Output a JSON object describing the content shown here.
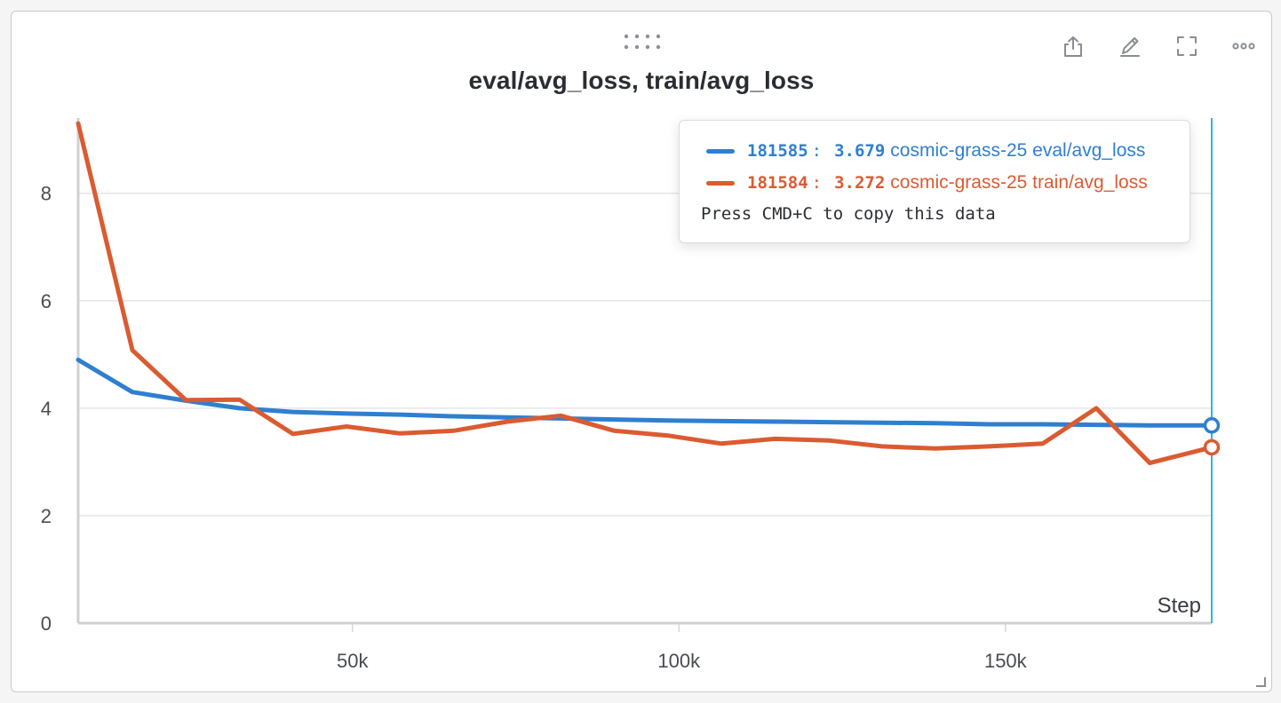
{
  "panel": {
    "title": "eval/avg_loss, train/avg_loss",
    "icons": [
      "drag-handle-icon",
      "share-icon",
      "edit-icon",
      "fullscreen-icon",
      "more-icon",
      "resize-icon"
    ]
  },
  "tooltip": {
    "rows": [
      {
        "step": "181585",
        "value": "3.679",
        "name": "cosmic-grass-25 eval/avg_loss",
        "color": "#2f7fd0"
      },
      {
        "step": "181584",
        "value": "3.272",
        "name": "cosmic-grass-25 train/avg_loss",
        "color": "#db5b31"
      }
    ],
    "hint": "Press CMD+C to copy this data"
  },
  "chart_data": {
    "type": "line",
    "xlabel": "Step",
    "ylabel": "",
    "xlim": [
      8000,
      181585
    ],
    "ylim": [
      0,
      9.4
    ],
    "xticks": [
      50000,
      100000,
      150000
    ],
    "xtick_labels": [
      "50k",
      "100k",
      "150k"
    ],
    "yticks": [
      0,
      2,
      4,
      6,
      8
    ],
    "ytick_labels": [
      "0",
      "2",
      "4",
      "6",
      "8"
    ],
    "grid": true,
    "hover_step": 181585,
    "series": [
      {
        "name": "cosmic-grass-25 eval/avg_loss",
        "color": "#2f7fd0",
        "x": [
          8000,
          16300,
          24500,
          32700,
          40900,
          49100,
          57300,
          65500,
          73700,
          81900,
          90100,
          98300,
          106500,
          114700,
          122900,
          131100,
          139300,
          147500,
          155700,
          163900,
          172100,
          181585
        ],
        "y": [
          4.9,
          4.3,
          4.14,
          4.0,
          3.93,
          3.9,
          3.88,
          3.85,
          3.83,
          3.81,
          3.79,
          3.77,
          3.76,
          3.75,
          3.74,
          3.73,
          3.72,
          3.7,
          3.7,
          3.69,
          3.68,
          3.679
        ]
      },
      {
        "name": "cosmic-grass-25 train/avg_loss",
        "color": "#db5b31",
        "x": [
          8000,
          16300,
          24500,
          32700,
          40900,
          49100,
          57300,
          65500,
          73700,
          81900,
          90100,
          98300,
          106500,
          114700,
          122900,
          131100,
          139300,
          147500,
          155700,
          163900,
          172100,
          181584
        ],
        "y": [
          9.3,
          5.08,
          4.15,
          4.16,
          3.52,
          3.66,
          3.53,
          3.58,
          3.75,
          3.86,
          3.58,
          3.49,
          3.34,
          3.43,
          3.4,
          3.29,
          3.25,
          3.29,
          3.34,
          4.0,
          2.98,
          3.272
        ]
      }
    ]
  }
}
